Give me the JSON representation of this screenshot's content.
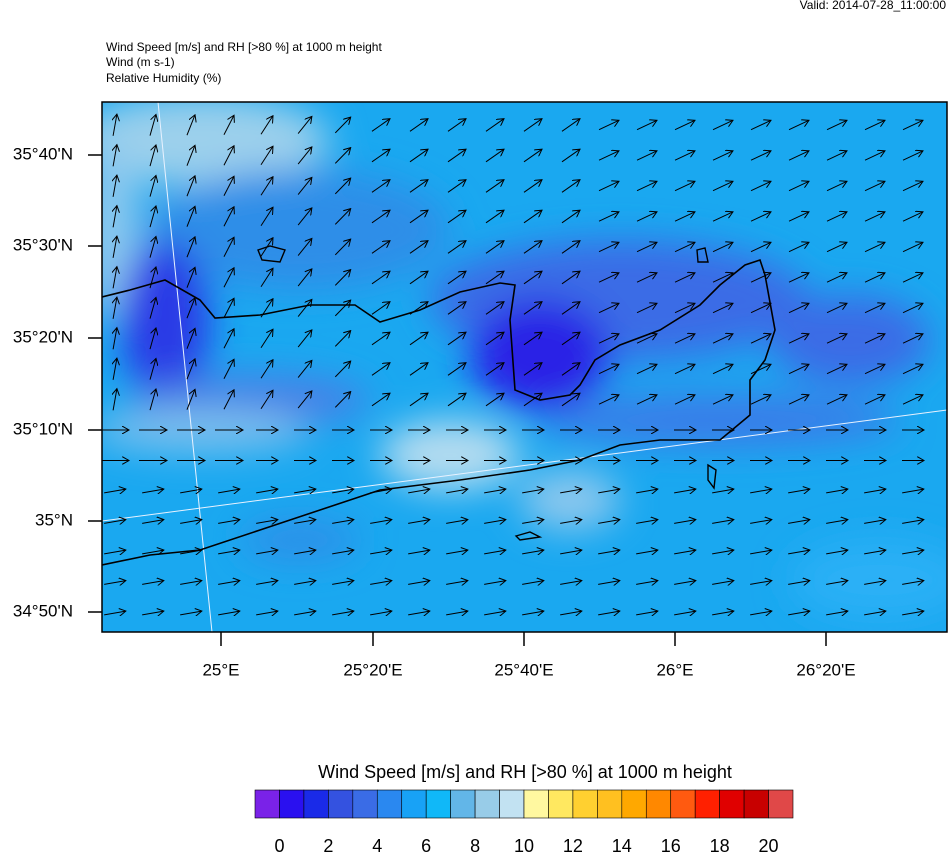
{
  "valid": "Valid: 2014-07-28_11:00:00",
  "titles": [
    "Wind Speed [m/s] and RH [>80 %] at 1000 m height",
    "Wind   (m s-1)",
    "Relative Humidity   (%)"
  ],
  "map": {
    "lat_labels": [
      "35°40'N",
      "35°30'N",
      "35°20'N",
      "35°10'N",
      "35°N",
      "34°50'N"
    ],
    "lon_labels": [
      "25°E",
      "25°20'E",
      "25°40'E",
      "26°E",
      "26°20'E"
    ]
  },
  "colorbar": {
    "title": "Wind Speed [m/s] and RH [>80 %] at 1000 m height",
    "lim": [
      -1,
      21
    ],
    "ticks": [
      0,
      2,
      4,
      6,
      8,
      10,
      12,
      14,
      16,
      18,
      20
    ],
    "colors": [
      "#7a22e8",
      "#2a10f0",
      "#1a2ae8",
      "#3452e0",
      "#3a6ce6",
      "#2a88f0",
      "#18a2f6",
      "#10b8f8",
      "#62b6e8",
      "#98cce8",
      "#c2e2f2",
      "#fff8a0",
      "#ffe860",
      "#ffd030",
      "#ffc020",
      "#ffa800",
      "#ff8800",
      "#ff5a10",
      "#ff2000",
      "#e00000",
      "#c80000",
      "#e04848"
    ]
  }
}
